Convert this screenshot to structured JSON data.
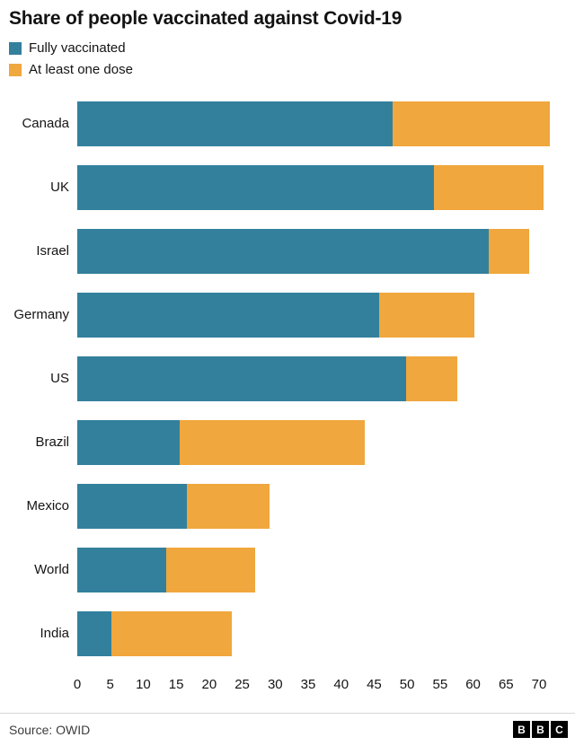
{
  "title": "Share of people vaccinated against Covid-19",
  "legend": [
    {
      "label": "Fully vaccinated",
      "color": "#33809d"
    },
    {
      "label": "At least one dose",
      "color": "#f0a73d"
    }
  ],
  "chart_data": {
    "type": "bar",
    "orientation": "horizontal",
    "stacked": true,
    "title": "Share of people vaccinated against Covid-19",
    "xlabel": "",
    "ylabel": "",
    "xlim": [
      0,
      70
    ],
    "x_ticks": [
      0,
      5,
      10,
      15,
      20,
      25,
      30,
      35,
      40,
      45,
      50,
      55,
      60,
      65,
      70
    ],
    "grid": false,
    "legend_position": "top-left",
    "categories": [
      "Canada",
      "UK",
      "Israel",
      "Germany",
      "US",
      "Brazil",
      "Mexico",
      "World",
      "India"
    ],
    "series": [
      {
        "name": "Fully vaccinated",
        "color": "#33809d",
        "values": [
          46,
          52,
          60,
          44,
          48,
          15,
          16,
          13,
          5
        ]
      },
      {
        "name": "At least one dose",
        "color": "#f0a73d",
        "values": [
          69,
          68,
          66,
          58,
          55.5,
          42,
          28,
          26,
          22.5
        ],
        "note": "values are bar totals; orange segment spans from fully-vaccinated value to this total"
      }
    ]
  },
  "footer": {
    "source": "Source: OWID",
    "logo_letters": [
      "B",
      "B",
      "C"
    ]
  }
}
